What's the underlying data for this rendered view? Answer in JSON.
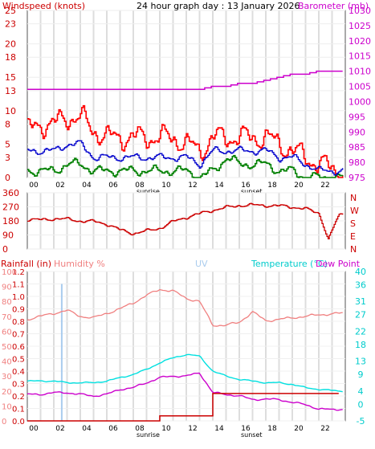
{
  "title": "24 hour graph day : 13 January 2026",
  "wind_panel": {
    "left_label": "Windspeed (knots)",
    "right_label": "Barometer (mb)",
    "left_ticks": [
      "25",
      "23",
      "20",
      "18",
      "15",
      "13",
      "10",
      "8",
      "5",
      "3",
      "0"
    ],
    "right_ticks": [
      "1030",
      "1025",
      "1020",
      "1015",
      "1010",
      "1005",
      "1000",
      "995",
      "990",
      "985",
      "980",
      "975"
    ],
    "hour_labels": [
      "00",
      "02",
      "04",
      "06",
      "08",
      "10",
      "12",
      "14",
      "16",
      "18",
      "20",
      "22"
    ],
    "sunrise_label": "sunrise",
    "sunset_label": "sunset"
  },
  "dir_panel": {
    "left_ticks": [
      "360",
      "270",
      "180",
      "90",
      "0"
    ],
    "right_ticks": [
      "N",
      "W",
      "S",
      "E",
      "N"
    ]
  },
  "weather_panel": {
    "rain_label": "Rainfall (in)",
    "humidity_label": "Humidity %",
    "uv_label": "UV",
    "temp_label": "Temperature (°C)",
    "dew_label": "Dew Point",
    "rain_ticks": [
      "1.2",
      "1.1",
      "1.0",
      "0.9",
      "0.8",
      "0.7",
      "0.6",
      "0.5",
      "0.4",
      "0.3",
      "0.2",
      "0.1",
      "0.0"
    ],
    "hum_ticks": [
      "100",
      "90",
      "80",
      "70",
      "60",
      "50",
      "40",
      "30",
      "20",
      "10",
      "0"
    ],
    "temp_ticks": [
      "40",
      "36",
      "31",
      "27",
      "22",
      "18",
      "13",
      "9",
      "4",
      "0",
      "-5"
    ],
    "hour_labels": [
      "00",
      "02",
      "04",
      "06",
      "08",
      "10",
      "12",
      "14",
      "16",
      "18",
      "20",
      "22"
    ],
    "sunrise_label": "sunrise",
    "sunset_label": "sunset"
  },
  "colors": {
    "gust": "#ff0000",
    "average_wind": "#0000cc",
    "lull": "#008000",
    "barometer": "#cc00cc",
    "direction": "#cc0000",
    "rainfall": "#cc0000",
    "humidity": "#f08080",
    "uv": "#aaccee",
    "temperature": "#00e0e0",
    "dew_point": "#cc00cc",
    "daylight_grid": "#dddddd"
  },
  "chart_data": [
    {
      "type": "line",
      "x_unit": "hour",
      "x": [
        0,
        1,
        2,
        3,
        4,
        5,
        6,
        7,
        8,
        9,
        10,
        11,
        12,
        13,
        14,
        15,
        16,
        17,
        18,
        19,
        20,
        21,
        22,
        23.5
      ],
      "ylim": [
        0,
        25
      ],
      "y2lim": [
        975,
        1030
      ],
      "series": [
        {
          "name": "gust",
          "axis": "left",
          "values": [
            7,
            8,
            8,
            9,
            9,
            7,
            6,
            6,
            6,
            6,
            6,
            6,
            5,
            4,
            6,
            6,
            6,
            6,
            6,
            5,
            4,
            3,
            2,
            1
          ]
        },
        {
          "name": "average",
          "axis": "left",
          "values": [
            4,
            4,
            4,
            5,
            5,
            3,
            3,
            3,
            3,
            3,
            3,
            3,
            3,
            2,
            4,
            4,
            4,
            4,
            4,
            3,
            3,
            2,
            1,
            1
          ]
        },
        {
          "name": "lull",
          "axis": "left",
          "values": [
            1,
            1,
            1,
            2,
            2,
            1,
            1,
            1,
            1,
            1,
            1,
            1,
            1,
            0,
            1,
            3,
            2,
            2,
            2,
            1,
            1,
            0,
            0,
            0
          ]
        },
        {
          "name": "barometer",
          "axis": "right",
          "values": [
            1004,
            1004,
            1004,
            1004,
            1004,
            1004,
            1004,
            1004,
            1004,
            1004,
            1004,
            1004,
            1004,
            1004,
            1005,
            1005,
            1006,
            1006,
            1007,
            1008,
            1009,
            1009,
            1010,
            1010
          ]
        }
      ]
    },
    {
      "type": "line",
      "x_unit": "hour",
      "x": [
        0,
        1,
        2,
        3,
        4,
        5,
        6,
        7,
        8,
        9,
        10,
        11,
        12,
        13,
        14,
        15,
        16,
        17,
        18,
        19,
        20,
        21,
        22,
        22.7,
        23.5
      ],
      "ylim": [
        0,
        360
      ],
      "series": [
        {
          "name": "wind direction",
          "values": [
            190,
            185,
            195,
            190,
            180,
            175,
            160,
            120,
            100,
            115,
            135,
            175,
            205,
            225,
            250,
            265,
            280,
            280,
            280,
            275,
            270,
            255,
            230,
            60,
            220
          ]
        }
      ]
    },
    {
      "type": "line",
      "x_unit": "hour",
      "x": [
        0,
        1,
        2,
        3,
        4,
        5,
        6,
        7,
        8,
        9,
        10,
        11,
        12,
        13,
        14,
        15,
        16,
        17,
        18,
        19,
        20,
        21,
        22,
        23.5
      ],
      "series": [
        {
          "name": "humidity",
          "axis": "humidity",
          "ylim": [
            0,
            100
          ],
          "values": [
            68,
            70,
            72,
            74,
            70,
            69,
            72,
            75,
            79,
            84,
            88,
            87,
            82,
            80,
            64,
            64,
            66,
            73,
            67,
            68,
            69,
            70,
            71,
            72
          ]
        },
        {
          "name": "temperature",
          "axis": "temp",
          "ylim": [
            -5,
            40
          ],
          "values": [
            7,
            7,
            7,
            6.5,
            6.5,
            6.5,
            7,
            8,
            9,
            10.5,
            12.5,
            14,
            15,
            14.5,
            10,
            8.5,
            7.5,
            7,
            6.5,
            6.5,
            6,
            5,
            4.5,
            4
          ]
        },
        {
          "name": "dew point",
          "axis": "temp",
          "ylim": [
            -5,
            40
          ],
          "values": [
            3,
            3,
            3.5,
            3.5,
            3,
            2.5,
            3,
            4.5,
            5,
            6.5,
            8,
            8.5,
            8.5,
            9.5,
            3.5,
            3,
            2.5,
            1.5,
            1.5,
            1.5,
            0.5,
            0,
            -1.5,
            -1.5
          ]
        },
        {
          "name": "rainfall",
          "axis": "rain",
          "ylim": [
            0,
            1.2
          ],
          "values": [
            0,
            0,
            0,
            0,
            0,
            0,
            0,
            0,
            0,
            0,
            0.04,
            0.04,
            0.04,
            0.04,
            0.22,
            0.22,
            0.22,
            0.22,
            0.22,
            0.22,
            0.22,
            0.22,
            0.22,
            0.22
          ]
        },
        {
          "name": "uv",
          "axis": "rain",
          "ylim": [
            0,
            1.2
          ],
          "x_uv": [
            2.6,
            2.6
          ],
          "values_uv": [
            0,
            1.1
          ]
        }
      ]
    }
  ]
}
